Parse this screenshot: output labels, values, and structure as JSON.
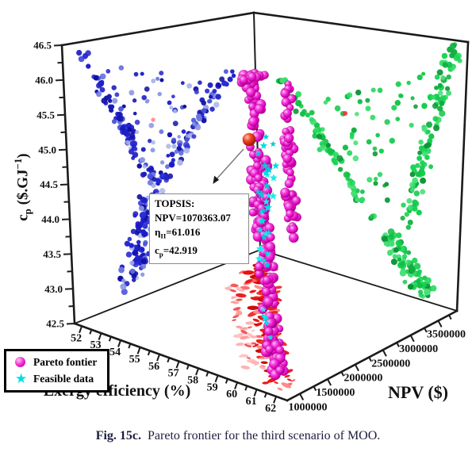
{
  "figure": {
    "caption_bold": "Fig. 15c.",
    "caption_text": "Pareto frontier for the third scenario of MOO."
  },
  "legend": {
    "items": [
      {
        "label": "Pareto fontier",
        "marker": "sphere",
        "color": "#ee1fd0"
      },
      {
        "label": "Feasible data",
        "marker": "star",
        "color": "#00dde3"
      }
    ]
  },
  "annotation": {
    "title": "TOPSIS:",
    "npv_line": "NPV=1070363.07",
    "eta_prefix": "η",
    "eta_sub": "II",
    "eta_value": "=61.016",
    "cp_prefix": "c",
    "cp_sub": "p",
    "cp_value": "=42.919"
  },
  "axes": {
    "cp": {
      "title_p1": "c",
      "title_sub": "p",
      "title_p2": " ($.GJ",
      "title_sup": "−1",
      "title_p3": ")",
      "ticks": [
        "46.5",
        "46.0",
        "45.5",
        "45.0",
        "44.5",
        "44.0",
        "43.5",
        "43.0",
        "42.5"
      ],
      "range": [
        42.5,
        46.5
      ]
    },
    "exergy": {
      "title": "Exergy efficiency (%)",
      "ticks": [
        "52",
        "53",
        "54",
        "55",
        "56",
        "57",
        "58",
        "59",
        "60",
        "61",
        "62"
      ],
      "range": [
        52,
        62
      ]
    },
    "npv": {
      "title": "NPV ($)",
      "ticks": [
        "1000000",
        "1500000",
        "2000000",
        "2500000",
        "3000000",
        "3500000"
      ],
      "range": [
        1000000,
        3500000
      ]
    }
  },
  "chart_data": {
    "type": "scatter",
    "projection": "3d",
    "title": "",
    "xlabel": "Exergy efficiency (%)",
    "ylabel": "NPV ($)",
    "zlabel": "cp ($.GJ-1)",
    "xlim": [
      52,
      62
    ],
    "ylim": [
      1000000,
      3500000
    ],
    "zlim": [
      42.5,
      46.5
    ],
    "series": [
      {
        "name": "Pareto fontier",
        "marker": "sphere",
        "color": "#ee1fd0",
        "role": "pareto-frontier",
        "approx_ranges": {
          "exergy_pct": [
            58,
            62
          ],
          "npv_usd": [
            1000000,
            3500000
          ],
          "cp_usd_gj": [
            42.9,
            46.3
          ]
        }
      },
      {
        "name": "Feasible data",
        "marker": "star",
        "color": "#00dde3",
        "role": "feasible-points"
      },
      {
        "name": "left-wall-projection",
        "axis_pair": "cp-vs-exergy",
        "color": "#2020cf",
        "shape": "V-fan opening upward"
      },
      {
        "name": "right-wall-projection",
        "axis_pair": "cp-vs-npv",
        "color": "#11d14d",
        "shape": "V-fan opening upward"
      },
      {
        "name": "floor-projection",
        "axis_pair": "exergy-vs-npv",
        "color": "#f01212",
        "shape": "diagonal band under pareto column"
      }
    ],
    "topsis_point": {
      "NPV": 1070363.07,
      "eta_II": 61.016,
      "cp": 42.919,
      "marker_color": "#e02010"
    },
    "seed": 42,
    "palettes": {
      "blue": [
        "#1e1ecb",
        "#2b2bd2",
        "#1414ad",
        "#8b97e2",
        "#2424cc",
        "#4853d6",
        "#1a1ac2",
        "#aab6ea",
        "#2020c9",
        "#3535d2",
        "#0f0fa0",
        "#6b77dc"
      ],
      "green": [
        "#12d14b",
        "#0fae3e",
        "#2fdc63",
        "#0c9636",
        "#17c94f",
        "#45e077",
        "#10bf44",
        "#1ad455"
      ],
      "red": [
        "#ee1111",
        "#f43333",
        "#c90d0d",
        "#ff8a8a",
        "#e82222",
        "#f01515",
        "#ff6b6b"
      ],
      "palered": [
        "#ff9d9d",
        "#ffc3c3",
        "#f25555",
        "#ffb3b3"
      ],
      "cyan": [
        "#00dde3",
        "#00c9d9",
        "#1becf0"
      ]
    },
    "clusters": [
      {
        "name": "blue-arm-left",
        "wall": "left",
        "kind": "line",
        "a": [
          0.1,
          0.03
        ],
        "b": [
          0.46,
          0.6
        ],
        "n": 95,
        "ju": 0.035,
        "jv": 0.03,
        "r": [
          2.5,
          4.0
        ],
        "style": "dot",
        "palette": "blue"
      },
      {
        "name": "blue-arm-right",
        "wall": "left",
        "kind": "line",
        "a": [
          0.86,
          0.24
        ],
        "b": [
          0.48,
          0.6
        ],
        "n": 78,
        "ju": 0.035,
        "jv": 0.03,
        "r": [
          2.5,
          4.0
        ],
        "style": "dot",
        "palette": "blue"
      },
      {
        "name": "blue-fill",
        "wall": "left",
        "kind": "tri",
        "p": [
          [
            0.13,
            0.06
          ],
          [
            0.84,
            0.26
          ],
          [
            0.47,
            0.58
          ]
        ],
        "n": 60,
        "r": [
          2.3,
          3.5
        ],
        "style": "dot",
        "palette": "blue"
      },
      {
        "name": "blue-column",
        "wall": "left",
        "kind": "line",
        "a": [
          0.46,
          0.62
        ],
        "b": [
          0.3,
          0.95
        ],
        "n": 115,
        "ju": 0.1,
        "jv": 0.035,
        "r": [
          2.5,
          4.2
        ],
        "style": "dot",
        "palette": "blue"
      },
      {
        "name": "green-arm-left",
        "wall": "right",
        "kind": "line",
        "a": [
          0.12,
          0.26
        ],
        "b": [
          0.58,
          0.76
        ],
        "n": 72,
        "ju": 0.035,
        "jv": 0.03,
        "r": [
          2.8,
          4.2
        ],
        "style": "dot",
        "palette": "green"
      },
      {
        "name": "green-band-right",
        "wall": "right",
        "kind": "line",
        "a": [
          0.93,
          0.02
        ],
        "b": [
          0.74,
          0.72
        ],
        "n": 105,
        "ju": 0.05,
        "jv": 0.03,
        "r": [
          2.8,
          4.2
        ],
        "style": "dot",
        "palette": "green"
      },
      {
        "name": "green-fill",
        "wall": "right",
        "kind": "tri",
        "p": [
          [
            0.26,
            0.33
          ],
          [
            0.88,
            0.1
          ],
          [
            0.64,
            0.7
          ]
        ],
        "n": 48,
        "r": [
          2.5,
          3.8
        ],
        "style": "dot",
        "palette": "green"
      },
      {
        "name": "green-bottom-blob",
        "wall": "right",
        "kind": "line",
        "a": [
          0.64,
          0.78
        ],
        "b": [
          0.83,
          0.97
        ],
        "n": 80,
        "ju": 0.07,
        "jv": 0.03,
        "r": [
          2.8,
          4.4
        ],
        "style": "dot",
        "palette": "green"
      },
      {
        "name": "red-floor-band",
        "wall": "screen",
        "kind": "line",
        "a": [
          322,
          338
        ],
        "b": [
          352,
          490
        ],
        "n": 135,
        "ju": 26,
        "jv": 9,
        "r": [
          3.0,
          7.5
        ],
        "style": "flat",
        "palette": "red"
      },
      {
        "name": "red-floor-pale",
        "wall": "screen",
        "kind": "line",
        "a": [
          292,
          355
        ],
        "b": [
          320,
          462
        ],
        "n": 48,
        "ju": 15,
        "jv": 10,
        "r": [
          2.5,
          6.0
        ],
        "style": "flat",
        "palette": "palered"
      },
      {
        "name": "stray-red-dot",
        "wall": "screen",
        "kind": "line",
        "a": [
          193,
          151
        ],
        "b": [
          193,
          151
        ],
        "n": 1,
        "ju": 0,
        "jv": 0,
        "r": [
          2.6,
          2.6
        ],
        "style": "dot",
        "palette": "red"
      },
      {
        "name": "stray-orange-dot",
        "wall": "screen",
        "kind": "line",
        "a": [
          435,
          143
        ],
        "b": [
          435,
          143
        ],
        "n": 1,
        "ju": 0,
        "jv": 0,
        "r": [
          3.0,
          3.0
        ],
        "style": "dot",
        "palette": "red"
      },
      {
        "name": "pareto-column-main",
        "wall": "screen",
        "kind": "line",
        "a": [
          315,
          92
        ],
        "b": [
          348,
          478
        ],
        "n": 200,
        "ju": 12,
        "jv": 5,
        "r": [
          4.6,
          6.6
        ],
        "style": "sphere",
        "palette": "red"
      },
      {
        "name": "pareto-strand-right",
        "wall": "screen",
        "kind": "line",
        "a": [
          362,
          108
        ],
        "b": [
          368,
          298
        ],
        "n": 62,
        "ju": 8,
        "jv": 6,
        "r": [
          4.4,
          6.2
        ],
        "style": "sphere",
        "palette": "red"
      },
      {
        "name": "pareto-top-spread",
        "wall": "screen",
        "kind": "line",
        "a": [
          303,
          101
        ],
        "b": [
          334,
          95
        ],
        "n": 15,
        "ju": 5,
        "jv": 4,
        "r": [
          4.2,
          5.8
        ],
        "style": "sphere",
        "palette": "red"
      },
      {
        "name": "feasible-stars-near-topsis",
        "wall": "screen",
        "kind": "line",
        "a": [
          305,
          168
        ],
        "b": [
          310,
          178
        ],
        "n": 3,
        "ju": 4,
        "jv": 4,
        "r": [
          3.6,
          4.8
        ],
        "style": "star",
        "palette": "cyan"
      },
      {
        "name": "feasible-stars-main",
        "wall": "screen",
        "kind": "line",
        "a": [
          338,
          168
        ],
        "b": [
          336,
          330
        ],
        "n": 30,
        "ju": 14,
        "jv": 8,
        "r": [
          3.8,
          5.6
        ],
        "style": "star",
        "palette": "cyan"
      },
      {
        "name": "feasible-stars-lower",
        "wall": "screen",
        "kind": "line",
        "a": [
          331,
          380
        ],
        "b": [
          341,
          428
        ],
        "n": 7,
        "ju": 8,
        "jv": 6,
        "r": [
          3.4,
          5.0
        ],
        "style": "star",
        "palette": "cyan"
      }
    ]
  }
}
